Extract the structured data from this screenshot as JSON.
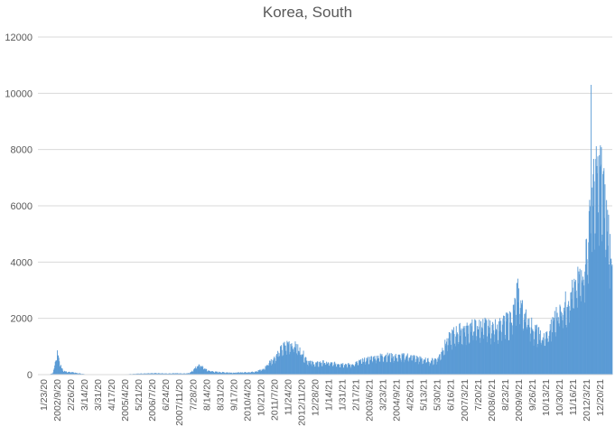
{
  "chart_data": {
    "type": "bar",
    "title": "Korea, South",
    "xlabel": "",
    "ylabel": "",
    "ylim": [
      0,
      12000
    ],
    "yticks": [
      0,
      2000,
      4000,
      6000,
      8000,
      10000,
      12000
    ],
    "grid": true,
    "legend": "none",
    "bar_color": "#5b9bd5",
    "grid_color": "#d9d9d9",
    "x_tick_labels": [
      "1/23/20",
      "2002/9/20",
      "2/26/20",
      "3/14/20",
      "3/31/20",
      "4/17/20",
      "2005/4/20",
      "5/21/20",
      "2006/7/20",
      "6/24/20",
      "2007/11/20",
      "7/28/20",
      "8/14/20",
      "8/31/20",
      "9/17/20",
      "2010/4/20",
      "10/21/20",
      "2011/7/20",
      "11/24/20",
      "2012/11/20",
      "12/28/20",
      "1/14/21",
      "1/31/21",
      "2/17/21",
      "2003/6/21",
      "3/23/21",
      "2004/9/21",
      "4/26/21",
      "5/13/21",
      "5/30/21",
      "6/16/21",
      "2007/3/21",
      "7/20/21",
      "2008/6/21",
      "8/23/21",
      "2009/9/21",
      "9/26/21",
      "10/13/21",
      "10/30/21",
      "11/16/21",
      "2012/3/21",
      "12/20/21"
    ],
    "keypoints": [
      [
        0,
        0
      ],
      [
        20,
        0
      ],
      [
        28,
        50
      ],
      [
        32,
        300
      ],
      [
        35,
        700
      ],
      [
        37,
        820
      ],
      [
        40,
        600
      ],
      [
        44,
        300
      ],
      [
        48,
        150
      ],
      [
        55,
        100
      ],
      [
        65,
        90
      ],
      [
        75,
        60
      ],
      [
        85,
        30
      ],
      [
        100,
        0
      ],
      [
        130,
        0
      ],
      [
        170,
        15
      ],
      [
        200,
        40
      ],
      [
        230,
        50
      ],
      [
        250,
        40
      ],
      [
        270,
        50
      ],
      [
        285,
        40
      ],
      [
        295,
        60
      ],
      [
        305,
        200
      ],
      [
        310,
        330
      ],
      [
        315,
        350
      ],
      [
        322,
        250
      ],
      [
        330,
        150
      ],
      [
        345,
        100
      ],
      [
        365,
        80
      ],
      [
        380,
        70
      ],
      [
        400,
        80
      ],
      [
        420,
        100
      ],
      [
        440,
        200
      ],
      [
        450,
        450
      ],
      [
        460,
        600
      ],
      [
        470,
        850
      ],
      [
        480,
        1050
      ],
      [
        490,
        1150
      ],
      [
        495,
        1100
      ],
      [
        505,
        1000
      ],
      [
        515,
        800
      ],
      [
        525,
        500
      ],
      [
        540,
        400
      ],
      [
        555,
        450
      ],
      [
        570,
        400
      ],
      [
        590,
        400
      ],
      [
        610,
        350
      ],
      [
        630,
        500
      ],
      [
        650,
        600
      ],
      [
        675,
        700
      ],
      [
        700,
        650
      ],
      [
        720,
        680
      ],
      [
        740,
        600
      ],
      [
        750,
        550
      ],
      [
        765,
        500
      ],
      [
        780,
        600
      ],
      [
        790,
        1000
      ],
      [
        800,
        1300
      ],
      [
        810,
        1500
      ],
      [
        820,
        1600
      ],
      [
        830,
        1650
      ],
      [
        840,
        1700
      ],
      [
        850,
        1750
      ],
      [
        860,
        1750
      ],
      [
        870,
        1800
      ],
      [
        880,
        1700
      ],
      [
        890,
        1750
      ],
      [
        900,
        1800
      ],
      [
        910,
        1900
      ],
      [
        920,
        2000
      ],
      [
        930,
        2500
      ],
      [
        935,
        3000
      ],
      [
        945,
        2300
      ],
      [
        955,
        2000
      ],
      [
        965,
        1700
      ],
      [
        975,
        1500
      ],
      [
        985,
        1300
      ],
      [
        995,
        1500
      ],
      [
        1005,
        2000
      ],
      [
        1015,
        2300
      ],
      [
        1025,
        2500
      ],
      [
        1035,
        2800
      ],
      [
        1045,
        3100
      ],
      [
        1055,
        3500
      ],
      [
        1065,
        4000
      ],
      [
        1075,
        5500
      ],
      [
        1080,
        6500
      ],
      [
        1085,
        7000
      ],
      [
        1090,
        7200
      ],
      [
        1095,
        7600
      ],
      [
        1100,
        7000
      ],
      [
        1105,
        6200
      ],
      [
        1110,
        5500
      ],
      [
        1115,
        4800
      ],
      [
        1119,
        4200
      ]
    ],
    "spikes": [
      [
        1078,
        10300
      ],
      [
        1094,
        7800
      ],
      [
        1046,
        3300
      ],
      [
        933,
        3250
      ],
      [
        1070,
        4100
      ]
    ]
  }
}
